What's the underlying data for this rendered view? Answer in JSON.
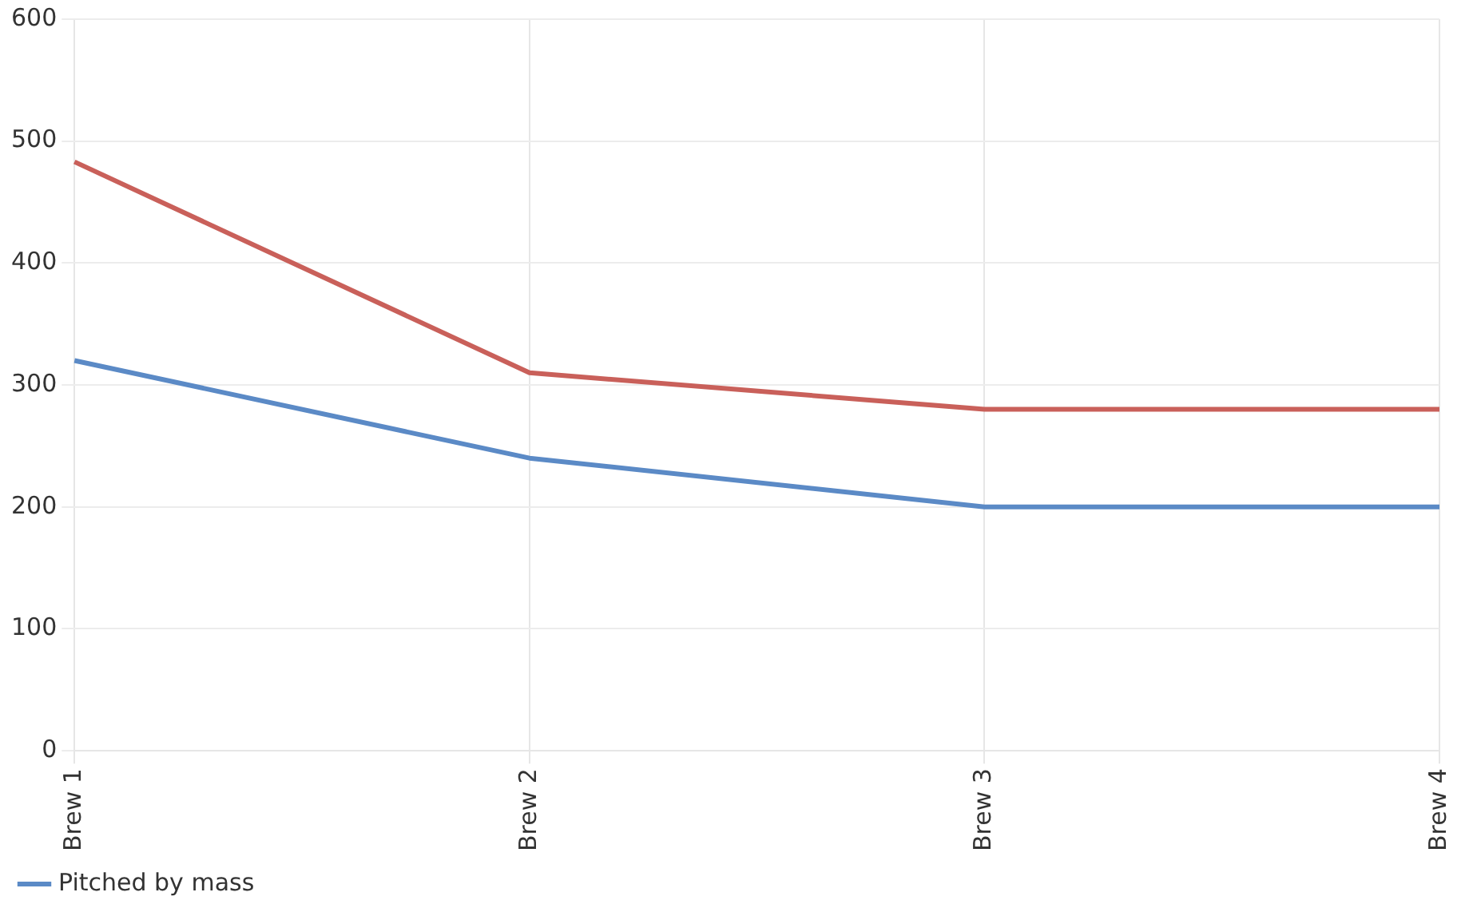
{
  "chart_data": {
    "type": "line",
    "categories": [
      "Brew 1",
      "Brew 2",
      "Brew 3",
      "Brew 4"
    ],
    "series": [
      {
        "name": "Pitched by mass",
        "color": "#5b8ac6",
        "values": [
          320,
          240,
          200,
          200
        ]
      },
      {
        "color": "#c9605a",
        "values": [
          483,
          310,
          280,
          280
        ]
      }
    ],
    "ylim": [
      0,
      600
    ],
    "yticks": [
      0,
      100,
      200,
      300,
      400,
      500,
      600
    ],
    "grid": true,
    "legend": "bottom left",
    "marker": "none",
    "line_style": "solid"
  }
}
